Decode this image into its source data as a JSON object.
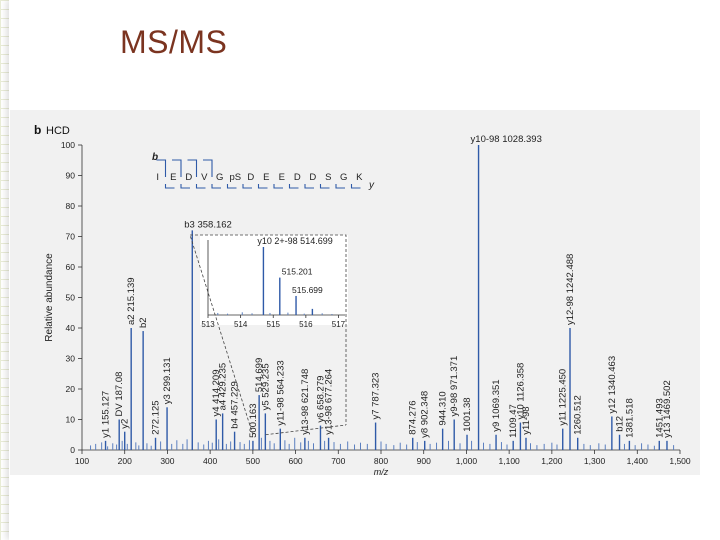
{
  "slide": {
    "title": "MS/MS"
  },
  "chart_data": {
    "type": "bar",
    "panel_label": "b",
    "panel_title": "HCD",
    "xlabel": "m/z",
    "ylabel": "Relative abundance",
    "xlim": [
      100,
      1500
    ],
    "ylim": [
      0,
      100
    ],
    "x_ticks": [
      100,
      200,
      300,
      400,
      500,
      600,
      700,
      800,
      900,
      1000,
      1100,
      1200,
      1300,
      1400,
      1500
    ],
    "x_tick_labels": [
      "100",
      "200",
      "300",
      "400",
      "500",
      "600",
      "700",
      "800",
      "900",
      "1,000",
      "1,100",
      "1,200",
      "1,300",
      "1,400",
      "1,500"
    ],
    "y_ticks": [
      0,
      10,
      20,
      30,
      40,
      50,
      60,
      70,
      80,
      90,
      100
    ],
    "y_tick_labels": [
      "0",
      "10",
      "20",
      "30",
      "40",
      "50",
      "60",
      "70",
      "80",
      "90",
      "100"
    ],
    "sequence": {
      "b_label": "b",
      "y_label": "y",
      "residues": [
        "I",
        "E",
        "D",
        "V",
        "G",
        "pS",
        "D",
        "E",
        "E",
        "D",
        "D",
        "S",
        "G",
        "K"
      ],
      "b_breaks": [
        1,
        2,
        3,
        4
      ],
      "y_breaks": [
        1,
        2,
        3,
        4,
        5,
        6,
        7,
        8,
        9,
        10,
        11,
        12,
        13
      ]
    },
    "peaks": [
      {
        "mz": 155.127,
        "rel": 3,
        "label": "y1 155.127",
        "vertical": true
      },
      {
        "mz": 187.08,
        "rel": 10,
        "label": "DV 187.08",
        "vertical": true
      },
      {
        "mz": 200,
        "rel": 6,
        "label": "y2",
        "vertical": true
      },
      {
        "mz": 215.139,
        "rel": 40,
        "label": "a2 215.139",
        "vertical": true
      },
      {
        "mz": 243.13,
        "rel": 39,
        "label": "b2",
        "vertical": true
      },
      {
        "mz": 272.125,
        "rel": 4,
        "label": "272.125",
        "vertical": true
      },
      {
        "mz": 299.131,
        "rel": 14,
        "label": "y3 299.131",
        "vertical": true
      },
      {
        "mz": 358.162,
        "rel": 72,
        "label": "b3 358.162",
        "vertical": false
      },
      {
        "mz": 414.209,
        "rel": 10,
        "label": "y4 414.209",
        "vertical": true
      },
      {
        "mz": 429.235,
        "rel": 12,
        "label": "a4 429.235",
        "vertical": true
      },
      {
        "mz": 457.229,
        "rel": 6,
        "label": "b4 457.229",
        "vertical": true
      },
      {
        "mz": 500.163,
        "rel": 3,
        "label": "500.163",
        "vertical": true
      },
      {
        "mz": 514.699,
        "rel": 18,
        "label": "514.699",
        "vertical": true
      },
      {
        "mz": 529.235,
        "rel": 12,
        "label": "y5 529.235",
        "vertical": true
      },
      {
        "mz": 564.233,
        "rel": 7,
        "label": "y11-98 564.233",
        "vertical": true
      },
      {
        "mz": 621.748,
        "rel": 4,
        "label": "y13-98 621.748",
        "vertical": true
      },
      {
        "mz": 658.279,
        "rel": 8,
        "label": "y6 658.279",
        "vertical": true
      },
      {
        "mz": 677.264,
        "rel": 4,
        "label": "y13-98 677.264",
        "vertical": true
      },
      {
        "mz": 787.323,
        "rel": 9,
        "label": "y7 787.323",
        "vertical": true
      },
      {
        "mz": 874.276,
        "rel": 4,
        "label": "874.276",
        "vertical": true
      },
      {
        "mz": 902.348,
        "rel": 3,
        "label": "y8 902.348",
        "vertical": true
      },
      {
        "mz": 944.31,
        "rel": 7,
        "label": "944.310",
        "vertical": true
      },
      {
        "mz": 971.371,
        "rel": 10,
        "label": "y9-98 971.371",
        "vertical": true
      },
      {
        "mz": 1001.38,
        "rel": 5,
        "label": "1001.38",
        "vertical": true
      },
      {
        "mz": 1028.393,
        "rel": 100,
        "label": "y10-98 1028.393",
        "vertical": false
      },
      {
        "mz": 1069.351,
        "rel": 5,
        "label": "y9 1069.351",
        "vertical": true
      },
      {
        "mz": 1109.47,
        "rel": 3,
        "label": "1109.47",
        "vertical": true
      },
      {
        "mz": 1126.358,
        "rel": 9,
        "label": "y10 1126.358",
        "vertical": true
      },
      {
        "mz": 1139.44,
        "rel": 4,
        "label": "y11-98",
        "vertical": true
      },
      {
        "mz": 1242.488,
        "rel": 40,
        "label": "y12-98 1242.488",
        "vertical": true
      },
      {
        "mz": 1225.45,
        "rel": 7,
        "label": "y11 1225.450",
        "vertical": true
      },
      {
        "mz": 1260.512,
        "rel": 4,
        "label": "1260.512",
        "vertical": true
      },
      {
        "mz": 1340.463,
        "rel": 11,
        "label": "y12 1340.463",
        "vertical": true
      },
      {
        "mz": 1358.42,
        "rel": 5,
        "label": "b12",
        "vertical": true
      },
      {
        "mz": 1381.518,
        "rel": 3,
        "label": "1381.518",
        "vertical": true
      },
      {
        "mz": 1451.493,
        "rel": 3,
        "label": "1451.493",
        "vertical": true
      },
      {
        "mz": 1469.502,
        "rel": 3,
        "label": "y13 1469.502",
        "vertical": true
      }
    ],
    "noise": [
      [
        120,
        1.5
      ],
      [
        132,
        2
      ],
      [
        146,
        2.5
      ],
      [
        160,
        1.2
      ],
      [
        172,
        2.2
      ],
      [
        181,
        1.8
      ],
      [
        194,
        3
      ],
      [
        206,
        2
      ],
      [
        226,
        2.5
      ],
      [
        233,
        1.5
      ],
      [
        252,
        2.2
      ],
      [
        262,
        1.4
      ],
      [
        284,
        2.8
      ],
      [
        310,
        2
      ],
      [
        322,
        3.2
      ],
      [
        336,
        2
      ],
      [
        346,
        3.5
      ],
      [
        372,
        2.5
      ],
      [
        385,
        1.8
      ],
      [
        396,
        3
      ],
      [
        405,
        2.4
      ],
      [
        420,
        3.5
      ],
      [
        438,
        2
      ],
      [
        448,
        2.8
      ],
      [
        470,
        2.6
      ],
      [
        480,
        2
      ],
      [
        492,
        3.2
      ],
      [
        520,
        4
      ],
      [
        540,
        3
      ],
      [
        550,
        2.2
      ],
      [
        575,
        3.2
      ],
      [
        585,
        2
      ],
      [
        598,
        4
      ],
      [
        612,
        2.5
      ],
      [
        630,
        3
      ],
      [
        642,
        2.2
      ],
      [
        668,
        3
      ],
      [
        690,
        2.6
      ],
      [
        705,
        2
      ],
      [
        722,
        2.8
      ],
      [
        738,
        1.8
      ],
      [
        752,
        2.4
      ],
      [
        768,
        2
      ],
      [
        800,
        2.8
      ],
      [
        812,
        2
      ],
      [
        830,
        1.6
      ],
      [
        845,
        2.4
      ],
      [
        860,
        1.8
      ],
      [
        885,
        2.6
      ],
      [
        915,
        2
      ],
      [
        930,
        2.4
      ],
      [
        958,
        3
      ],
      [
        985,
        2.2
      ],
      [
        1012,
        3
      ],
      [
        1040,
        2.4
      ],
      [
        1055,
        2
      ],
      [
        1082,
        2.6
      ],
      [
        1095,
        1.8
      ],
      [
        1150,
        2.2
      ],
      [
        1165,
        1.6
      ],
      [
        1182,
        2
      ],
      [
        1200,
        2.4
      ],
      [
        1212,
        1.8
      ],
      [
        1275,
        2
      ],
      [
        1290,
        1.6
      ],
      [
        1310,
        2.2
      ],
      [
        1325,
        1.8
      ],
      [
        1370,
        2
      ],
      [
        1395,
        1.6
      ],
      [
        1410,
        2.2
      ],
      [
        1425,
        1.8
      ],
      [
        1440,
        1.4
      ],
      [
        1485,
        1.6
      ]
    ],
    "inset": {
      "title": "y10 2+-98 514.699",
      "xlim": [
        513,
        517.2
      ],
      "x_ticks": [
        513,
        514,
        515,
        516,
        517
      ],
      "x_tick_labels": [
        "513",
        "514",
        "515",
        "516",
        "517"
      ],
      "peaks": [
        {
          "mz": 514.699,
          "rel": 100
        },
        {
          "mz": 515.201,
          "rel": 55
        },
        {
          "mz": 515.699,
          "rel": 28
        },
        {
          "mz": 516.2,
          "rel": 9
        }
      ],
      "noise": [
        [
          513.3,
          3
        ],
        [
          513.6,
          2
        ],
        [
          514.05,
          4
        ],
        [
          514.35,
          2.5
        ],
        [
          514.9,
          3
        ],
        [
          515.45,
          3.5
        ],
        [
          515.95,
          2
        ],
        [
          516.5,
          2.5
        ],
        [
          516.8,
          1.5
        ]
      ],
      "peak_labels": [
        "515.201",
        "515.699"
      ]
    }
  }
}
